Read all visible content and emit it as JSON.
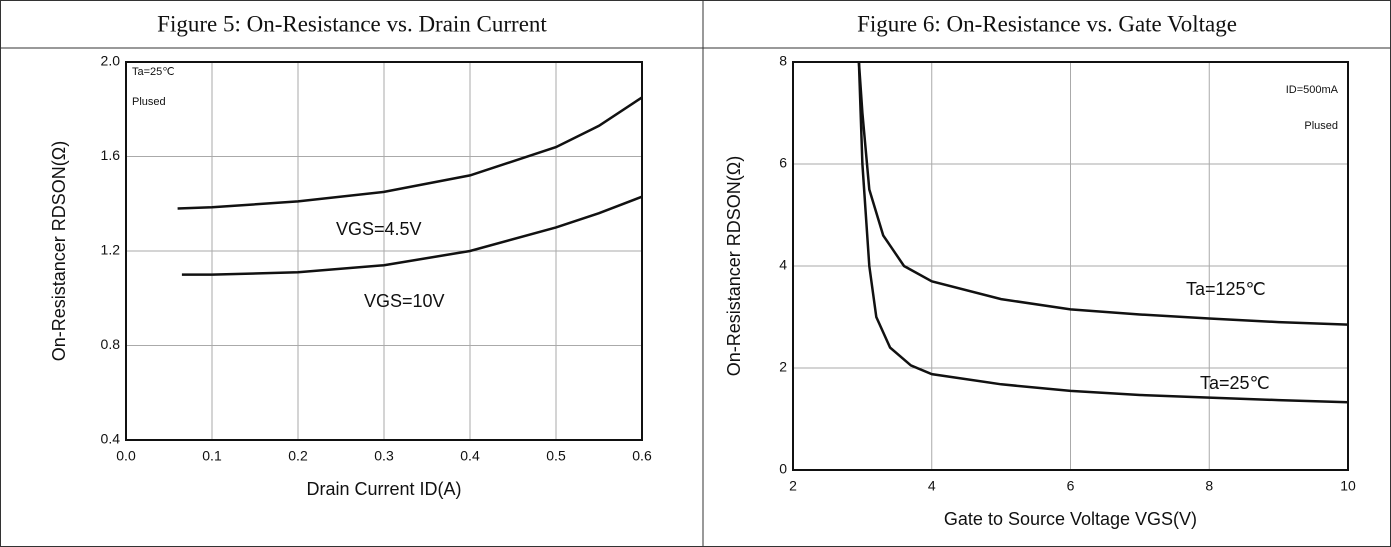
{
  "chart_data": [
    {
      "type": "line",
      "title": "Figure 5: On-Resistance vs. Drain Current",
      "xlabel": "Drain Current ID(A)",
      "ylabel": "On-Resistancer RDSON(Ω)",
      "annotations": [
        "Ta=25℃",
        "Plused"
      ],
      "xlim": [
        0,
        0.6
      ],
      "ylim": [
        0.4,
        2.0
      ],
      "xticks": [
        {
          "value": 0,
          "label": "0.0"
        },
        0.1,
        0.2,
        0.3,
        0.4,
        0.5,
        0.6
      ],
      "yticks": [
        0.4,
        0.8,
        1.2,
        1.6,
        {
          "value": 2,
          "label": "2.0"
        }
      ],
      "grid": true,
      "series": [
        {
          "name": "VGS=4.5V",
          "color": "#111111",
          "x": [
            0.06,
            0.1,
            0.2,
            0.3,
            0.4,
            0.5,
            0.55,
            0.6
          ],
          "values": [
            1.38,
            1.385,
            1.41,
            1.45,
            1.52,
            1.64,
            1.73,
            1.85
          ]
        },
        {
          "name": "VGS=10V",
          "color": "#111111",
          "x": [
            0.065,
            0.1,
            0.2,
            0.3,
            0.4,
            0.5,
            0.55,
            0.6
          ],
          "values": [
            1.1,
            1.1,
            1.11,
            1.14,
            1.2,
            1.3,
            1.36,
            1.43
          ]
        }
      ]
    },
    {
      "type": "line",
      "title": "Figure 6: On-Resistance vs. Gate Voltage",
      "xlabel": "Gate to Source Voltage VGS(V)",
      "ylabel": "On-Resistancer RDSON(Ω)",
      "annotations": [
        "ID=500mA",
        "Plused"
      ],
      "xlim": [
        2,
        10
      ],
      "ylim": [
        0,
        8
      ],
      "xticks": [
        2,
        4,
        6,
        8,
        10
      ],
      "yticks": [
        0,
        2,
        4,
        6,
        8
      ],
      "grid": true,
      "series": [
        {
          "name": "Ta=125℃",
          "color": "#111111",
          "x": [
            2.95,
            3.0,
            3.1,
            3.3,
            3.6,
            4,
            5,
            6,
            7,
            8,
            9,
            10
          ],
          "values": [
            8,
            7,
            5.5,
            4.6,
            4.0,
            3.7,
            3.35,
            3.15,
            3.05,
            2.97,
            2.9,
            2.85
          ]
        },
        {
          "name": "Ta=25℃",
          "color": "#111111",
          "x": [
            2.95,
            3.0,
            3.1,
            3.2,
            3.4,
            3.7,
            4,
            5,
            6,
            7,
            8,
            9,
            10
          ],
          "values": [
            8,
            6,
            4,
            3.0,
            2.4,
            2.05,
            1.88,
            1.68,
            1.55,
            1.47,
            1.42,
            1.37,
            1.33
          ]
        }
      ]
    }
  ]
}
